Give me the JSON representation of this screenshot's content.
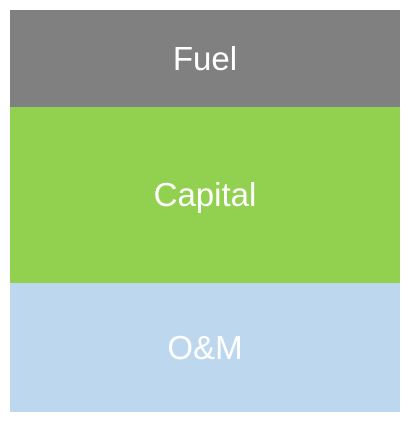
{
  "blocks": [
    {
      "label": "Fuel"
    },
    {
      "label": "Capital"
    },
    {
      "label": "O&M"
    }
  ]
}
